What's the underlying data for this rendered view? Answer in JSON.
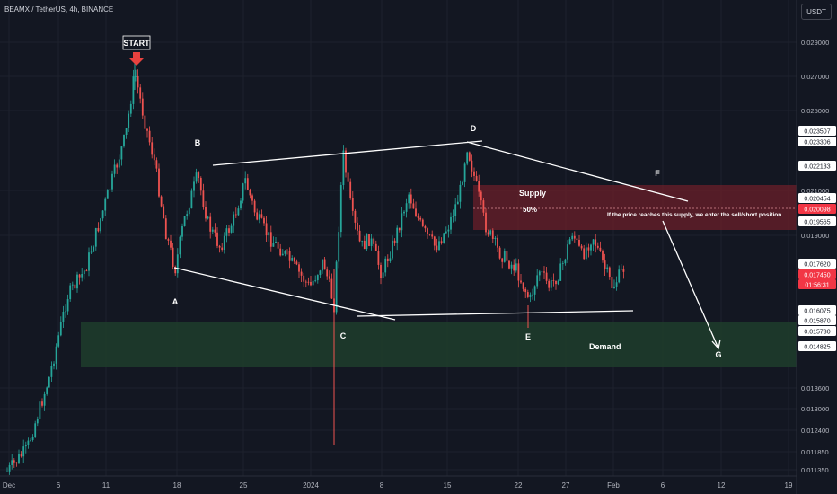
{
  "header": {
    "symbol_title": "BEAMX / TetherUS, 4h, BINANCE",
    "currency_button": "USDT"
  },
  "chart_data": {
    "type": "candlestick",
    "x_tick_labels": [
      "Dec",
      "6",
      "11",
      "18",
      "25",
      "2024",
      "8",
      "15",
      "22",
      "27",
      "Feb",
      "6",
      "12",
      "19"
    ],
    "y_tick_labels": [
      "0.029000",
      "0.027000",
      "0.025000",
      "0.021000",
      "0.019000",
      "0.013600",
      "0.013000",
      "0.012400",
      "0.011850",
      "0.011350"
    ],
    "price_tags": [
      {
        "label": "0.023507",
        "style": "white"
      },
      {
        "label": "0.023306",
        "style": "white"
      },
      {
        "label": "0.022133",
        "style": "white"
      },
      {
        "label": "0.020454",
        "style": "white"
      },
      {
        "label": "0.020098",
        "style": "red"
      },
      {
        "label": "0.019565",
        "style": "white"
      },
      {
        "label": "0.017620",
        "style": "white"
      },
      {
        "label": "0.017450",
        "style": "red"
      },
      {
        "label": "01:56:31",
        "style": "red"
      },
      {
        "label": "0.016075",
        "style": "white"
      },
      {
        "label": "0.015870",
        "style": "white"
      },
      {
        "label": "0.015730",
        "style": "white"
      },
      {
        "label": "0.014825",
        "style": "white"
      }
    ],
    "zones": [
      {
        "name": "Supply",
        "color": "#7a1e2c",
        "top": 0.021,
        "bottom": 0.0191,
        "midline_label": "50%"
      },
      {
        "name": "Demand",
        "color": "#1e3a2c",
        "top": 0.0158,
        "bottom": 0.0142
      }
    ],
    "point_labels": [
      "START",
      "A",
      "B",
      "C",
      "D",
      "E",
      "F",
      "G"
    ],
    "annotation": "If the price reaches this supply, we enter the sell/short position",
    "colors": {
      "up": "#26a69a",
      "down": "#ef5350",
      "background": "#131722",
      "grid": "#1e222d",
      "line": "#ffffff"
    }
  }
}
